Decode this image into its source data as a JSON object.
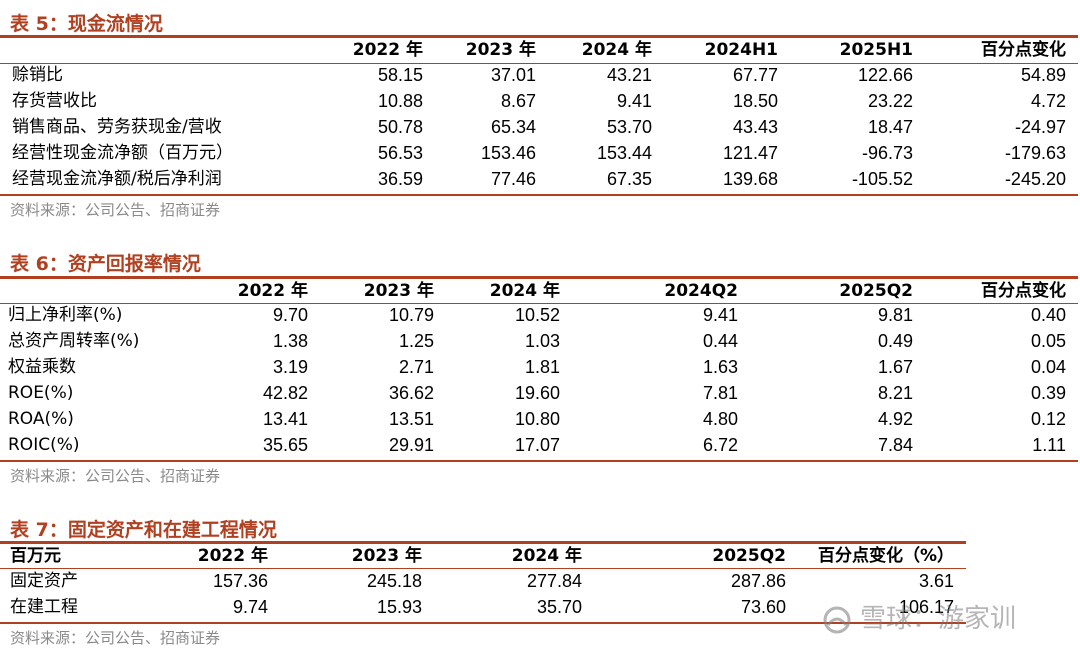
{
  "table5": {
    "title": "表 5：现金流情况",
    "headers": [
      "",
      "2022 年",
      "2023 年",
      "2024 年",
      "2024H1",
      "2025H1",
      "百分点变化"
    ],
    "rows": [
      [
        "赊销比",
        "58.15",
        "37.01",
        "43.21",
        "67.77",
        "122.66",
        "54.89"
      ],
      [
        "存货营收比",
        "10.88",
        "8.67",
        "9.41",
        "18.50",
        "23.22",
        "4.72"
      ],
      [
        "销售商品、劳务获现金/营收",
        "50.78",
        "65.34",
        "53.70",
        "43.43",
        "18.47",
        "-24.97"
      ],
      [
        "经营性现金流净额（百万元）",
        "56.53",
        "153.46",
        "153.44",
        "121.47",
        "-96.73",
        "-179.63"
      ],
      [
        "经营现金流净额/税后净利润",
        "36.59",
        "77.46",
        "67.35",
        "139.68",
        "-105.52",
        "-245.20"
      ]
    ],
    "source": "资料来源：公司公告、招商证券"
  },
  "table6": {
    "title": "表 6：资产回报率情况",
    "headers": [
      "",
      "2022 年",
      "2023 年",
      "2024 年",
      "2024Q2",
      "2025Q2",
      "百分点变化"
    ],
    "rows": [
      [
        "归上净利率(%)",
        "9.70",
        "10.79",
        "10.52",
        "9.41",
        "9.81",
        "0.40"
      ],
      [
        "总资产周转率(%)",
        "1.38",
        "1.25",
        "1.03",
        "0.44",
        "0.49",
        "0.05"
      ],
      [
        "权益乘数",
        "3.19",
        "2.71",
        "1.81",
        "1.63",
        "1.67",
        "0.04"
      ],
      [
        "ROE(%)",
        "42.82",
        "36.62",
        "19.60",
        "7.81",
        "8.21",
        "0.39"
      ],
      [
        "ROA(%)",
        "13.41",
        "13.51",
        "10.80",
        "4.80",
        "4.92",
        "0.12"
      ],
      [
        "ROIC(%)",
        "35.65",
        "29.91",
        "17.07",
        "6.72",
        "7.84",
        "1.11"
      ]
    ],
    "source": "资料来源：公司公告、招商证券"
  },
  "table7": {
    "title": "表 7：固定资产和在建工程情况",
    "headers": [
      "百万元",
      "2022 年",
      "2023 年",
      "2024 年",
      "2025Q2",
      "百分点变化（%）"
    ],
    "rows": [
      [
        "固定资产",
        "157.36",
        "245.18",
        "277.84",
        "287.86",
        "3.61"
      ],
      [
        "在建工程",
        "9.74",
        "15.93",
        "35.70",
        "73.60",
        "106.17"
      ]
    ],
    "source": "资料来源：公司公告、招商证券"
  },
  "watermark": {
    "text": "雪球：游家训",
    "icon": "snowball-logo-icon"
  },
  "colors": {
    "accent": "#b0401f",
    "source_text": "#8a8a8a"
  }
}
